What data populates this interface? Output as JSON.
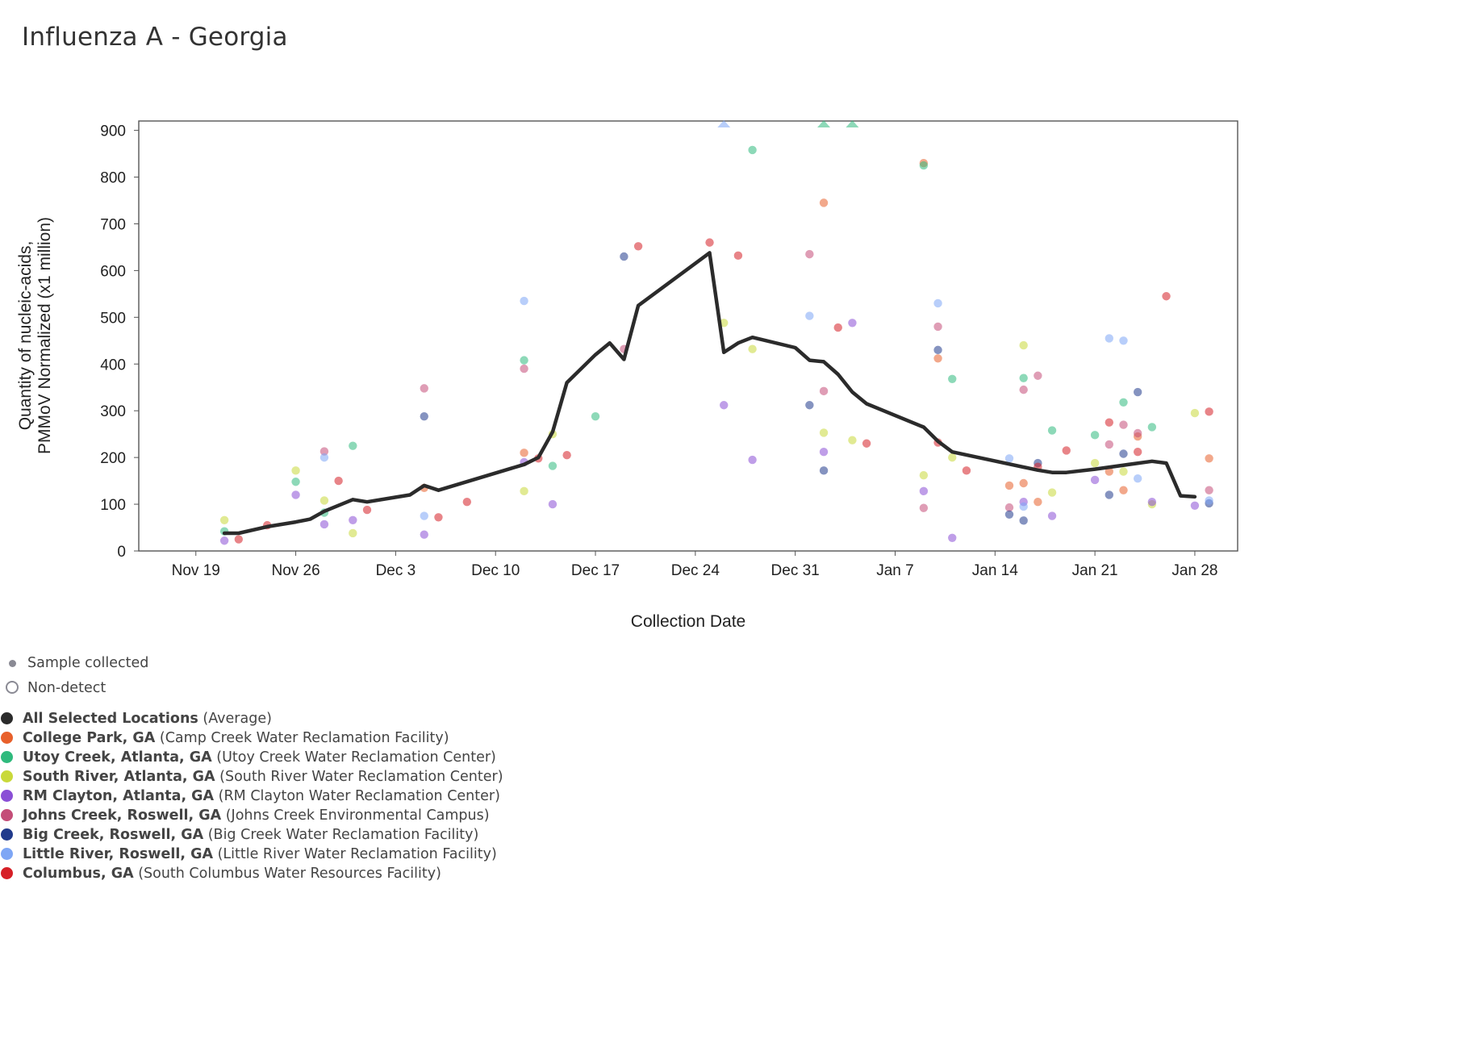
{
  "title": "Influenza A - Georgia",
  "legend_top": [
    {
      "label": "Sample collected",
      "marker": "small-dot"
    },
    {
      "label": "Non-detect",
      "marker": "ring"
    }
  ],
  "chart_data": {
    "type": "scatter",
    "title": "Influenza A - Georgia",
    "xlabel": "Collection Date",
    "ylabel": [
      "Quantity of nucleic-acids,",
      "PMMoV Normalized (x1 million)"
    ],
    "x_type": "date",
    "xlim": [
      "2023-11-15",
      "2024-01-31"
    ],
    "ylim": [
      0,
      920
    ],
    "x_ticks": [
      {
        "date": "2023-11-19",
        "label": "Nov 19"
      },
      {
        "date": "2023-11-26",
        "label": "Nov 26"
      },
      {
        "date": "2023-12-03",
        "label": "Dec 3"
      },
      {
        "date": "2023-12-10",
        "label": "Dec 10"
      },
      {
        "date": "2023-12-17",
        "label": "Dec 17"
      },
      {
        "date": "2023-12-24",
        "label": "Dec 24"
      },
      {
        "date": "2023-12-31",
        "label": "Dec 31"
      },
      {
        "date": "2024-01-07",
        "label": "Jan 7"
      },
      {
        "date": "2024-01-14",
        "label": "Jan 14"
      },
      {
        "date": "2024-01-21",
        "label": "Jan 21"
      },
      {
        "date": "2024-01-28",
        "label": "Jan 28"
      }
    ],
    "y_ticks": [
      0,
      100,
      200,
      300,
      400,
      500,
      600,
      700,
      800,
      900
    ],
    "grid": false,
    "legend_position": "bottom-left",
    "average": {
      "name": "All Selected Locations",
      "qualifier": "(Average)",
      "color": "#2b2b2b",
      "points": [
        [
          "2023-11-21",
          38
        ],
        [
          "2023-11-22",
          38
        ],
        [
          "2023-11-24",
          52
        ],
        [
          "2023-11-26",
          62
        ],
        [
          "2023-11-27",
          68
        ],
        [
          "2023-11-28",
          85
        ],
        [
          "2023-11-30",
          110
        ],
        [
          "2023-12-01",
          105
        ],
        [
          "2023-12-03",
          115
        ],
        [
          "2023-12-04",
          120
        ],
        [
          "2023-12-05",
          140
        ],
        [
          "2023-12-06",
          130
        ],
        [
          "2023-12-12",
          185
        ],
        [
          "2023-12-13",
          200
        ],
        [
          "2023-12-14",
          255
        ],
        [
          "2023-12-15",
          360
        ],
        [
          "2023-12-17",
          420
        ],
        [
          "2023-12-18",
          445
        ],
        [
          "2023-12-19",
          410
        ],
        [
          "2023-12-20",
          525
        ],
        [
          "2023-12-25",
          638
        ],
        [
          "2023-12-26",
          425
        ],
        [
          "2023-12-27",
          445
        ],
        [
          "2023-12-28",
          457
        ],
        [
          "2023-12-31",
          435
        ],
        [
          "2024-01-01",
          408
        ],
        [
          "2024-01-02",
          405
        ],
        [
          "2024-01-03",
          378
        ],
        [
          "2024-01-04",
          340
        ],
        [
          "2024-01-05",
          315
        ],
        [
          "2024-01-09",
          265
        ],
        [
          "2024-01-10",
          235
        ],
        [
          "2024-01-11",
          212
        ],
        [
          "2024-01-17",
          173
        ],
        [
          "2024-01-18",
          168
        ],
        [
          "2024-01-19",
          168
        ],
        [
          "2024-01-21",
          175
        ],
        [
          "2024-01-25",
          192
        ],
        [
          "2024-01-26",
          188
        ],
        [
          "2024-01-27",
          118
        ],
        [
          "2024-01-28",
          116
        ]
      ]
    },
    "series": [
      {
        "name": "College Park, GA",
        "facility": "(Camp Creek Water Reclamation Facility)",
        "color": "#e8602b",
        "points": [
          [
            "2024-01-09",
            830
          ],
          [
            "2024-01-02",
            745
          ],
          [
            "2024-01-10",
            412
          ],
          [
            "2023-12-12",
            210
          ],
          [
            "2024-01-15",
            140
          ],
          [
            "2024-01-16",
            145
          ],
          [
            "2024-01-17",
            105
          ],
          [
            "2024-01-22",
            170
          ],
          [
            "2024-01-23",
            130
          ],
          [
            "2024-01-24",
            245
          ],
          [
            "2024-01-29",
            198
          ],
          [
            "2023-12-05",
            135
          ]
        ]
      },
      {
        "name": "Utoy Creek, Atlanta, GA",
        "facility": "(Utoy Creek Water Reclamation Center)",
        "color": "#2fba7d",
        "points": [
          [
            "2023-12-28",
            858
          ],
          [
            "2024-01-09",
            825
          ],
          [
            "2024-01-11",
            368
          ],
          [
            "2023-12-12",
            408
          ],
          [
            "2023-12-17",
            288
          ],
          [
            "2023-12-14",
            182
          ],
          [
            "2023-11-30",
            225
          ],
          [
            "2023-11-26",
            148
          ],
          [
            "2023-11-28",
            82
          ],
          [
            "2023-11-21",
            42
          ],
          [
            "2024-01-16",
            370
          ],
          [
            "2024-01-18",
            258
          ],
          [
            "2024-01-21",
            248
          ],
          [
            "2024-01-23",
            318
          ],
          [
            "2024-01-25",
            265
          ]
        ],
        "offscale": [
          "2024-01-02",
          "2024-01-04"
        ]
      },
      {
        "name": "South River, Atlanta, GA",
        "facility": "(South River Water Reclamation Center)",
        "color": "#c9d93a",
        "points": [
          [
            "2023-11-21",
            66
          ],
          [
            "2023-11-26",
            172
          ],
          [
            "2023-11-28",
            108
          ],
          [
            "2023-11-30",
            38
          ],
          [
            "2023-12-12",
            128
          ],
          [
            "2023-12-14",
            250
          ],
          [
            "2023-12-26",
            488
          ],
          [
            "2023-12-28",
            432
          ],
          [
            "2024-01-02",
            253
          ],
          [
            "2024-01-04",
            237
          ],
          [
            "2024-01-09",
            162
          ],
          [
            "2024-01-11",
            200
          ],
          [
            "2024-01-16",
            440
          ],
          [
            "2024-01-18",
            125
          ],
          [
            "2024-01-21",
            188
          ],
          [
            "2024-01-23",
            170
          ],
          [
            "2024-01-25",
            100
          ],
          [
            "2024-01-28",
            295
          ]
        ]
      },
      {
        "name": "RM Clayton, Atlanta, GA",
        "facility": "(RM Clayton Water Reclamation Center)",
        "color": "#8a4fd6",
        "points": [
          [
            "2023-11-21",
            22
          ],
          [
            "2023-11-26",
            120
          ],
          [
            "2023-11-28",
            57
          ],
          [
            "2023-11-30",
            66
          ],
          [
            "2023-12-05",
            35
          ],
          [
            "2023-12-12",
            190
          ],
          [
            "2023-12-14",
            100
          ],
          [
            "2023-12-26",
            312
          ],
          [
            "2023-12-28",
            195
          ],
          [
            "2024-01-02",
            212
          ],
          [
            "2024-01-04",
            488
          ],
          [
            "2024-01-09",
            128
          ],
          [
            "2024-01-11",
            28
          ],
          [
            "2024-01-16",
            105
          ],
          [
            "2024-01-18",
            75
          ],
          [
            "2024-01-21",
            152
          ],
          [
            "2024-01-25",
            105
          ],
          [
            "2024-01-28",
            97
          ]
        ]
      },
      {
        "name": "Johns Creek, Roswell, GA",
        "facility": "(Johns Creek Environmental Campus)",
        "color": "#c44d78",
        "points": [
          [
            "2023-11-28",
            213
          ],
          [
            "2023-12-05",
            348
          ],
          [
            "2023-12-12",
            390
          ],
          [
            "2023-12-19",
            432
          ],
          [
            "2024-01-01",
            635
          ],
          [
            "2024-01-02",
            342
          ],
          [
            "2024-01-09",
            92
          ],
          [
            "2024-01-10",
            480
          ],
          [
            "2024-01-15",
            93
          ],
          [
            "2024-01-16",
            345
          ],
          [
            "2024-01-17",
            375
          ],
          [
            "2024-01-22",
            228
          ],
          [
            "2024-01-23",
            270
          ],
          [
            "2024-01-24",
            252
          ],
          [
            "2024-01-29",
            130
          ]
        ]
      },
      {
        "name": "Big Creek, Roswell, GA",
        "facility": "(Big Creek Water Reclamation Facility)",
        "color": "#203a8c",
        "points": [
          [
            "2023-12-05",
            288
          ],
          [
            "2023-12-19",
            630
          ],
          [
            "2024-01-01",
            312
          ],
          [
            "2024-01-02",
            172
          ],
          [
            "2024-01-10",
            430
          ],
          [
            "2024-01-15",
            78
          ],
          [
            "2024-01-16",
            65
          ],
          [
            "2024-01-17",
            188
          ],
          [
            "2024-01-22",
            120
          ],
          [
            "2024-01-23",
            208
          ],
          [
            "2024-01-24",
            340
          ],
          [
            "2024-01-29",
            102
          ]
        ]
      },
      {
        "name": "Little River, Roswell, GA",
        "facility": "(Little River Water Reclamation Facility)",
        "color": "#7ea6f5",
        "points": [
          [
            "2023-11-28",
            200
          ],
          [
            "2023-12-05",
            75
          ],
          [
            "2023-12-12",
            535
          ],
          [
            "2024-01-01",
            503
          ],
          [
            "2024-01-10",
            530
          ],
          [
            "2024-01-15",
            198
          ],
          [
            "2024-01-16",
            95
          ],
          [
            "2024-01-22",
            455
          ],
          [
            "2024-01-23",
            450
          ],
          [
            "2024-01-24",
            155
          ],
          [
            "2024-01-29",
            108
          ]
        ],
        "offscale": [
          "2023-12-26"
        ]
      },
      {
        "name": "Columbus, GA",
        "facility": "(South Columbus Water Resources Facility)",
        "color": "#d61f26",
        "points": [
          [
            "2023-11-22",
            25
          ],
          [
            "2023-11-24",
            55
          ],
          [
            "2023-11-29",
            150
          ],
          [
            "2023-12-01",
            88
          ],
          [
            "2023-12-06",
            72
          ],
          [
            "2023-12-08",
            105
          ],
          [
            "2023-12-13",
            198
          ],
          [
            "2023-12-15",
            205
          ],
          [
            "2023-12-20",
            652
          ],
          [
            "2023-12-25",
            660
          ],
          [
            "2023-12-27",
            632
          ],
          [
            "2024-01-03",
            478
          ],
          [
            "2024-01-05",
            230
          ],
          [
            "2024-01-10",
            232
          ],
          [
            "2024-01-12",
            172
          ],
          [
            "2024-01-17",
            180
          ],
          [
            "2024-01-19",
            215
          ],
          [
            "2024-01-22",
            275
          ],
          [
            "2024-01-24",
            212
          ],
          [
            "2024-01-26",
            545
          ],
          [
            "2024-01-29",
            298
          ]
        ]
      }
    ]
  }
}
